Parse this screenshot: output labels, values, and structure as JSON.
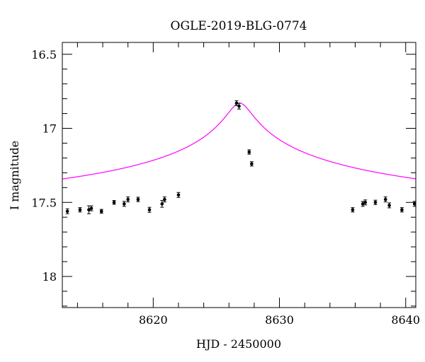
{
  "chart_data": {
    "type": "scatter",
    "title": "OGLE-2019-BLG-0774",
    "xlabel": "HJD - 2450000",
    "ylabel": "I magnitude",
    "xlim": [
      8612.8,
      8640.8
    ],
    "ylim": [
      18.21,
      16.42
    ],
    "y_inverted": true,
    "x_major_ticks": [
      8620,
      8630,
      8640
    ],
    "x_tick_labels": [
      "8620",
      "8630",
      "8640"
    ],
    "y_major_ticks": [
      16.5,
      17,
      17.5,
      18
    ],
    "y_tick_labels": [
      "16.5",
      "17",
      "17.5",
      "18"
    ],
    "grid": false,
    "colors": {
      "model": "#ff00ff",
      "points": "#000000",
      "axes": "#000000"
    },
    "series": [
      {
        "type": "errorbar",
        "x": [
          8613.2,
          8614.2,
          8614.9,
          8615.1,
          8615.9,
          8616.9,
          8617.7,
          8618.0,
          8618.8,
          8619.7,
          8620.7,
          8620.9,
          8622.0,
          8626.6,
          8626.8,
          8627.6,
          8627.8,
          8635.8,
          8636.6,
          8636.8,
          8637.6,
          8638.4,
          8638.7,
          8639.7,
          8640.7
        ],
        "y": [
          17.56,
          17.55,
          17.55,
          17.54,
          17.56,
          17.5,
          17.51,
          17.48,
          17.48,
          17.55,
          17.51,
          17.48,
          17.45,
          16.83,
          16.85,
          17.16,
          17.24,
          17.55,
          17.51,
          17.5,
          17.5,
          17.48,
          17.52,
          17.55,
          17.51
        ],
        "yerr": [
          0.012,
          0.01,
          0.022,
          0.012,
          0.008,
          0.008,
          0.012,
          0.012,
          0.01,
          0.012,
          0.018,
          0.012,
          0.012,
          0.012,
          0.015,
          0.01,
          0.01,
          0.01,
          0.012,
          0.012,
          0.01,
          0.012,
          0.012,
          0.01,
          0.012
        ]
      },
      {
        "type": "model",
        "t0": 8626.85,
        "base_mag": 17.52,
        "peak_mag": 16.83,
        "u0": 0.026,
        "tE": 34
      }
    ]
  }
}
